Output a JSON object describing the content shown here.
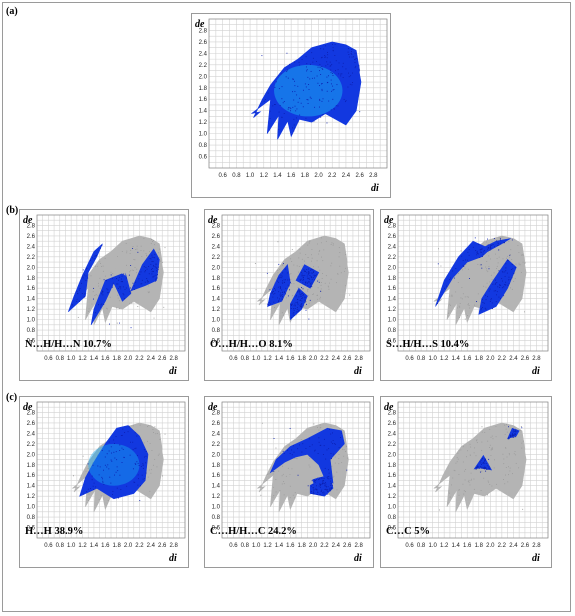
{
  "panel_labels": [
    "(a)",
    "(b)",
    "(c)"
  ],
  "axis": {
    "de_label": "de",
    "di_label": "di",
    "y_ticks": [
      "0.6",
      "0.8",
      "1.0",
      "1.2",
      "1.4",
      "1.6",
      "1.8",
      "2.0",
      "2.2",
      "2.4",
      "2.6",
      "2.8"
    ],
    "x_ticks": [
      "0.6",
      "0.8",
      "1.0",
      "1.2",
      "1.4",
      "1.6",
      "1.8",
      "2.0",
      "2.2",
      "2.4",
      "2.6",
      "2.8"
    ]
  },
  "colors": {
    "highlight": "#1238e0",
    "highlight_core": "#19a8f0",
    "background_points": "#b4b4b4"
  },
  "chart_data": [
    {
      "type": "scatter",
      "panel": "(a)",
      "title": "",
      "xlabel": "di",
      "ylabel": "de",
      "xlim": [
        0.4,
        3.0
      ],
      "ylim": [
        0.4,
        3.0
      ],
      "grid": true,
      "percentage": ""
    },
    {
      "type": "scatter",
      "panel": "(b)",
      "title": "N…H/H…N 10.7%",
      "label": "N…H/H…N",
      "percentage": 10.7,
      "xlabel": "di",
      "ylabel": "de",
      "xlim": [
        0.4,
        3.0
      ],
      "ylim": [
        0.4,
        3.0
      ],
      "grid": true
    },
    {
      "type": "scatter",
      "panel": "(b)",
      "title": "O…H/H…O 8.1%",
      "label": "O…H/H…O",
      "percentage": 8.1,
      "xlabel": "di",
      "ylabel": "de",
      "xlim": [
        0.4,
        3.0
      ],
      "ylim": [
        0.4,
        3.0
      ],
      "grid": true
    },
    {
      "type": "scatter",
      "panel": "(b)",
      "title": "S…H/H…S 10.4%",
      "label": "S…H/H…S",
      "percentage": 10.4,
      "xlabel": "di",
      "ylabel": "de",
      "xlim": [
        0.4,
        3.0
      ],
      "ylim": [
        0.4,
        3.0
      ],
      "grid": true
    },
    {
      "type": "scatter",
      "panel": "(c)",
      "title": "H…H 38.9%",
      "label": "H…H",
      "percentage": 38.9,
      "xlabel": "di",
      "ylabel": "de",
      "xlim": [
        0.4,
        3.0
      ],
      "ylim": [
        0.4,
        3.0
      ],
      "grid": true
    },
    {
      "type": "scatter",
      "panel": "(c)",
      "title": "C…H/H…C 24.2%",
      "label": "C…H/H…C",
      "percentage": 24.2,
      "xlabel": "di",
      "ylabel": "de",
      "xlim": [
        0.4,
        3.0
      ],
      "ylim": [
        0.4,
        3.0
      ],
      "grid": true
    },
    {
      "type": "scatter",
      "panel": "(c)",
      "title": "C…C 5%",
      "label": "C…C",
      "percentage": 5,
      "xlabel": "di",
      "ylabel": "de",
      "xlim": [
        0.4,
        3.0
      ],
      "ylim": [
        0.4,
        3.0
      ],
      "grid": true
    }
  ]
}
